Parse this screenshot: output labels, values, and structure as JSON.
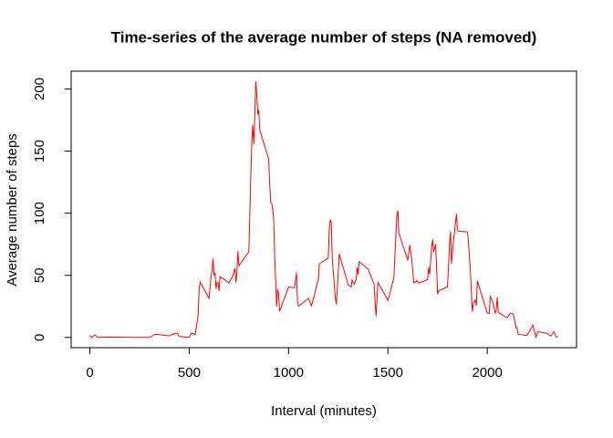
{
  "chart_data": {
    "type": "line",
    "title": "Time-series of the average number of steps (NA removed)",
    "x_label": "Interval (minutes)",
    "y_label": "Average number of steps",
    "color": "#ff0000",
    "x": [
      0,
      10,
      25,
      40,
      100,
      150,
      200,
      300,
      330,
      400,
      415,
      440,
      450,
      500,
      510,
      520,
      530,
      545,
      550,
      555,
      600,
      610,
      615,
      620,
      625,
      630,
      635,
      640,
      645,
      650,
      655,
      700,
      720,
      730,
      735,
      740,
      745,
      750,
      800,
      810,
      815,
      820,
      825,
      830,
      835,
      840,
      845,
      850,
      855,
      900,
      905,
      910,
      915,
      920,
      925,
      930,
      935,
      940,
      945,
      950,
      955,
      1000,
      1030,
      1040,
      1045,
      1050,
      1100,
      1115,
      1130,
      1145,
      1150,
      1155,
      1200,
      1205,
      1210,
      1215,
      1220,
      1235,
      1240,
      1245,
      1255,
      1300,
      1315,
      1320,
      1330,
      1340,
      1345,
      1350,
      1355,
      1400,
      1430,
      1440,
      1450,
      1500,
      1510,
      1530,
      1545,
      1550,
      1555,
      1600,
      1610,
      1620,
      1630,
      1640,
      1645,
      1655,
      1700,
      1705,
      1710,
      1715,
      1720,
      1725,
      1730,
      1740,
      1745,
      1750,
      1755,
      1800,
      1810,
      1815,
      1820,
      1830,
      1845,
      1850,
      1855,
      1900,
      1905,
      1915,
      1920,
      1925,
      1930,
      1940,
      1945,
      1950,
      2000,
      2010,
      2015,
      2030,
      2040,
      2045,
      2050,
      2055,
      2100,
      2115,
      2130,
      2145,
      2150,
      2155,
      2200,
      2230,
      2245,
      2255,
      2300,
      2320,
      2335,
      2340,
      2345,
      2350,
      2355
    ],
    "values": [
      1.7,
      0.1,
      2.1,
      0,
      0.3,
      0.2,
      0,
      0,
      2.6,
      1.2,
      2.5,
      3.5,
      0.8,
      0,
      3.0,
      3.3,
      2.1,
      18,
      39.5,
      44.5,
      31.5,
      49.3,
      54,
      63.5,
      50,
      52,
      39.3,
      44,
      44.2,
      37.4,
      49.0,
      43.8,
      49.9,
      55.7,
      44.3,
      52.3,
      69.5,
      57.8,
      68.9,
      129.4,
      157.5,
      171.2,
      155.4,
      177.3,
      206.2,
      195.9,
      179.6,
      183.4,
      167.0,
      143.5,
      124.0,
      109.1,
      108.1,
      103.7,
      95.9,
      66.2,
      45.2,
      24.8,
      38.8,
      35.0,
      21.1,
      40.6,
      40.0,
      52.1,
      28.6,
      25.1,
      31.4,
      25.5,
      33.8,
      44.6,
      46.0,
      59.2,
      63.9,
      87.6,
      94.8,
      92.8,
      63.4,
      32.5,
      26.5,
      37.7,
      67.3,
      42.3,
      40.8,
      46.2,
      42.8,
      46.4,
      56.4,
      50.7,
      61.0,
      55.2,
      43.1,
      17.1,
      44.1,
      30.0,
      35.5,
      48.1,
      98.7,
      102.1,
      84.0,
      62.1,
      74.5,
      63.0,
      43.9,
      44.7,
      45.7,
      43.7,
      46.6,
      56.3,
      50.7,
      61.2,
      72.7,
      78.9,
      68.9,
      75.1,
      56.5,
      34.8,
      37.5,
      40.7,
      74.7,
      85.3,
      59.3,
      77.4,
      99.5,
      86.6,
      85.6,
      84.9,
      77.8,
      53.5,
      36.3,
      20.7,
      27.4,
      30.2,
      25.5,
      45.7,
      19.6,
      19.3,
      33.3,
      27.3,
      19.5,
      21.3,
      32.3,
      20.2,
      15.9,
      19.2,
      19.2,
      7.8,
      8.1,
      2.6,
      1.5,
      9.8,
      0.1,
      4.6,
      3.3,
      0.96,
      4.7,
      3.3,
      0.64,
      0.23,
      1.08
    ],
    "xlim": [
      -94.2,
      2449.2
    ],
    "ylim": [
      -8.25,
      214.4
    ],
    "xticks": [
      0,
      500,
      1000,
      1500,
      2000
    ],
    "yticks": [
      0,
      50,
      100,
      150,
      200
    ]
  }
}
